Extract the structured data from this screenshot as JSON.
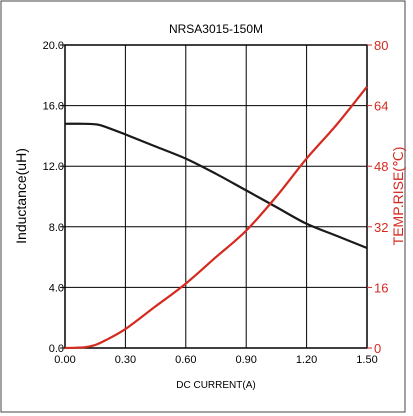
{
  "chart_data": {
    "type": "line",
    "title": "NRSA3015-150M",
    "xlabel": "DC CURRENT(A)",
    "ylabel_left": "Inductance(uH)",
    "ylabel_right": "TEMP.RISE(℃)",
    "xlim": [
      0,
      1.5
    ],
    "ylim_left": [
      0,
      20
    ],
    "ylim_right": [
      0,
      80
    ],
    "x_ticks": [
      "0.00",
      "0.30",
      "0.60",
      "0.90",
      "1.20",
      "1.50"
    ],
    "y_left_ticks": [
      "0.0",
      "4.0",
      "8.0",
      "12.0",
      "16.0",
      "20.0"
    ],
    "y_right_ticks": [
      "0",
      "16",
      "32",
      "48",
      "64",
      "80"
    ],
    "grid": true,
    "colors": {
      "inductance": "#1a1a1a",
      "temp_rise": "#d42a1f",
      "right_axis": "#d42a1f"
    },
    "series": [
      {
        "axis": "left",
        "x": [
          0.0,
          0.1,
          0.16,
          0.2,
          0.3,
          0.45,
          0.6,
          0.75,
          0.9,
          1.05,
          1.2,
          1.35,
          1.5
        ],
        "values": [
          14.8,
          14.8,
          14.75,
          14.6,
          14.1,
          13.3,
          12.5,
          11.5,
          10.4,
          9.3,
          8.2,
          7.4,
          6.6
        ]
      },
      {
        "axis": "right",
        "x": [
          0.0,
          0.1,
          0.15,
          0.2,
          0.3,
          0.45,
          0.6,
          0.75,
          0.9,
          1.05,
          1.2,
          1.35,
          1.5
        ],
        "values": [
          0,
          0.2,
          0.8,
          2,
          5,
          11,
          17,
          24,
          31,
          40,
          50,
          59,
          69
        ]
      }
    ]
  }
}
